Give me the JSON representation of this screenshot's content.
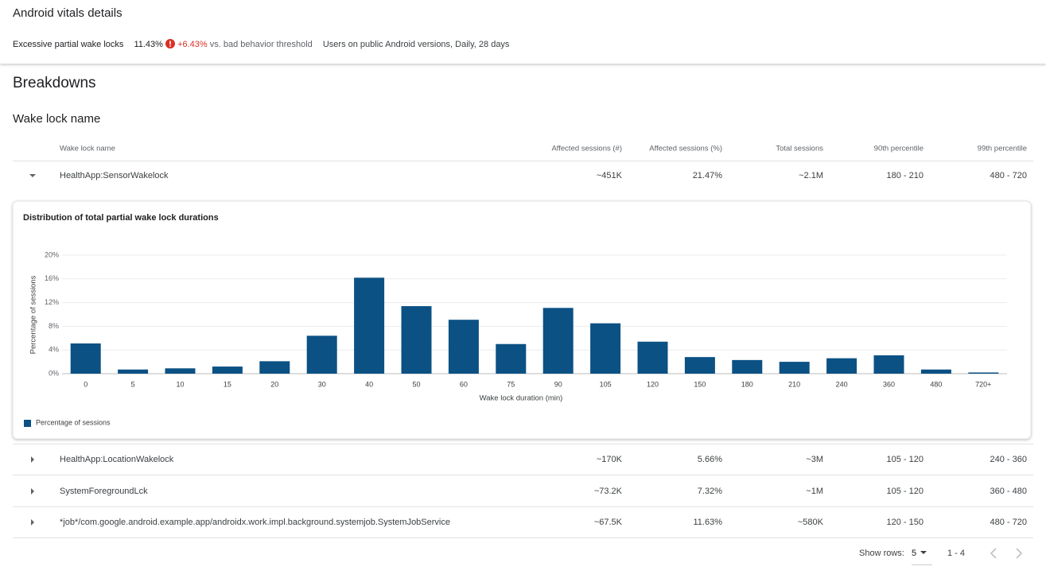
{
  "header": {
    "title": "Android vitals details",
    "metric_name": "Excessive partial wake locks",
    "metric_value": "11.43%",
    "delta": "+6.43%",
    "delta_suffix": "vs. bad behavior threshold",
    "scope": "Users on public Android versions, Daily, 28 days"
  },
  "section": {
    "title": "Breakdowns",
    "subtitle": "Wake lock name"
  },
  "table": {
    "columns": [
      "Wake lock name",
      "Affected sessions (#)",
      "Affected sessions (%)",
      "Total sessions",
      "90th percentile",
      "99th percentile"
    ],
    "rows": [
      [
        "HealthApp:SensorWakelock",
        "~451K",
        "21.47%",
        "~2.1M",
        "180 - 210",
        "480 - 720"
      ],
      [
        "HealthApp:LocationWakelock",
        "~170K",
        "5.66%",
        "~3M",
        "105 - 120",
        "240 - 360"
      ],
      [
        "SystemForegroundLck",
        "~73.2K",
        "7.32%",
        "~1M",
        "105 - 120",
        "360 - 480"
      ],
      [
        "*job*/com.google.android.example.app/androidx.work.impl.background.systemjob.SystemJobService",
        "~67.5K",
        "11.63%",
        "~580K",
        "120 - 150",
        "480 - 720"
      ]
    ]
  },
  "chart_data": {
    "type": "bar",
    "title": "Distribution of total partial wake lock durations",
    "x_label": "Wake lock duration (min)",
    "y_label": "Percentage of sessions",
    "categories": [
      "0",
      "5",
      "10",
      "15",
      "20",
      "30",
      "40",
      "50",
      "60",
      "75",
      "90",
      "105",
      "120",
      "150",
      "180",
      "210",
      "240",
      "360",
      "480",
      "720+"
    ],
    "series": [
      {
        "name": "Percentage of sessions",
        "color": "#0b5184",
        "values": [
          5.1,
          0.7,
          0.9,
          1.2,
          2.1,
          6.4,
          16.2,
          11.4,
          9.1,
          5.0,
          11.1,
          8.5,
          5.4,
          2.8,
          2.3,
          2.0,
          2.6,
          3.1,
          0.7,
          0.2
        ]
      }
    ],
    "ylim": [
      0,
      20
    ],
    "yticks": [
      {
        "value": 0,
        "label": "0%"
      },
      {
        "value": 4,
        "label": "4%"
      },
      {
        "value": 8,
        "label": "8%"
      },
      {
        "value": 12,
        "label": "12%"
      },
      {
        "value": 16,
        "label": "16%"
      },
      {
        "value": 20,
        "label": "20%"
      }
    ],
    "grid": true,
    "legend": "bottom-left"
  },
  "pagination": {
    "show_rows_label": "Show rows:",
    "rows": "5",
    "range": "1 - 4"
  }
}
